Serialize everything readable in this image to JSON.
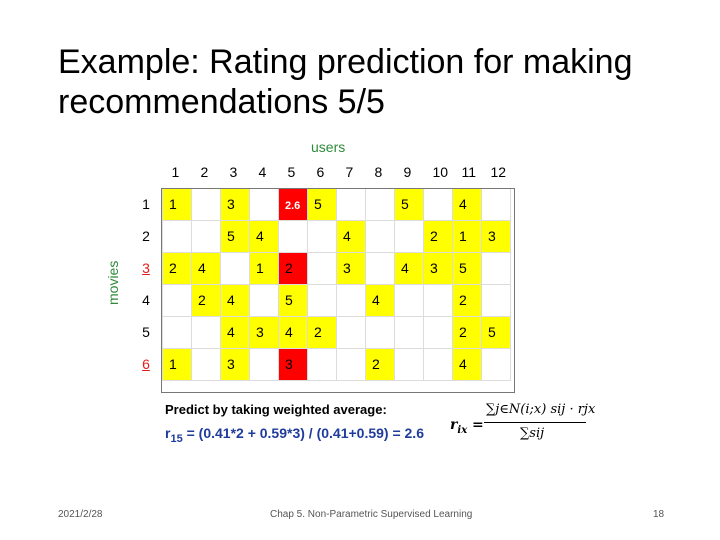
{
  "slide": {
    "title_line1": "Example: Rating prediction for making",
    "title_line2": "recommendations 5/5"
  },
  "matrix": {
    "users_label": "users",
    "movies_label": "movies",
    "user_headers": [
      "1",
      "2",
      "3",
      "4",
      "5",
      "6",
      "7",
      "8",
      "9",
      "10",
      "11",
      "12"
    ],
    "rows": [
      {
        "label": "1",
        "label_highlight": false,
        "cells": [
          {
            "v": "1",
            "c": "y"
          },
          {
            "v": "",
            "c": "w"
          },
          {
            "v": "3",
            "c": "y"
          },
          {
            "v": "",
            "c": "w"
          },
          {
            "v": "2.6",
            "c": "r",
            "pred": true
          },
          {
            "v": "5",
            "c": "y"
          },
          {
            "v": "",
            "c": "w"
          },
          {
            "v": "",
            "c": "w"
          },
          {
            "v": "5",
            "c": "y"
          },
          {
            "v": "",
            "c": "w"
          },
          {
            "v": "4",
            "c": "y"
          },
          {
            "v": "",
            "c": "w"
          }
        ]
      },
      {
        "label": "2",
        "label_highlight": false,
        "cells": [
          {
            "v": "",
            "c": "w"
          },
          {
            "v": "",
            "c": "w"
          },
          {
            "v": "5",
            "c": "y"
          },
          {
            "v": "4",
            "c": "y"
          },
          {
            "v": "",
            "c": "w"
          },
          {
            "v": "",
            "c": "w"
          },
          {
            "v": "4",
            "c": "y"
          },
          {
            "v": "",
            "c": "w"
          },
          {
            "v": "",
            "c": "w"
          },
          {
            "v": "2",
            "c": "y"
          },
          {
            "v": "1",
            "c": "y"
          },
          {
            "v": "3",
            "c": "y"
          }
        ]
      },
      {
        "label": "3",
        "label_highlight": true,
        "cells": [
          {
            "v": "2",
            "c": "y"
          },
          {
            "v": "4",
            "c": "y"
          },
          {
            "v": "",
            "c": "w"
          },
          {
            "v": "1",
            "c": "y"
          },
          {
            "v": "2",
            "c": "r"
          },
          {
            "v": "",
            "c": "w"
          },
          {
            "v": "3",
            "c": "y"
          },
          {
            "v": "",
            "c": "w"
          },
          {
            "v": "4",
            "c": "y"
          },
          {
            "v": "3",
            "c": "y"
          },
          {
            "v": "5",
            "c": "y"
          },
          {
            "v": "",
            "c": "w"
          }
        ]
      },
      {
        "label": "4",
        "label_highlight": false,
        "cells": [
          {
            "v": "",
            "c": "w"
          },
          {
            "v": "2",
            "c": "y"
          },
          {
            "v": "4",
            "c": "y"
          },
          {
            "v": "",
            "c": "w"
          },
          {
            "v": "5",
            "c": "y"
          },
          {
            "v": "",
            "c": "w"
          },
          {
            "v": "",
            "c": "w"
          },
          {
            "v": "4",
            "c": "y"
          },
          {
            "v": "",
            "c": "w"
          },
          {
            "v": "",
            "c": "w"
          },
          {
            "v": "2",
            "c": "y"
          },
          {
            "v": "",
            "c": "w"
          }
        ]
      },
      {
        "label": "5",
        "label_highlight": false,
        "cells": [
          {
            "v": "",
            "c": "w"
          },
          {
            "v": "",
            "c": "w"
          },
          {
            "v": "4",
            "c": "y"
          },
          {
            "v": "3",
            "c": "y"
          },
          {
            "v": "4",
            "c": "y"
          },
          {
            "v": "2",
            "c": "y"
          },
          {
            "v": "",
            "c": "w"
          },
          {
            "v": "",
            "c": "w"
          },
          {
            "v": "",
            "c": "w"
          },
          {
            "v": "",
            "c": "w"
          },
          {
            "v": "2",
            "c": "y"
          },
          {
            "v": "5",
            "c": "y"
          }
        ]
      },
      {
        "label": "6",
        "label_highlight": true,
        "cells": [
          {
            "v": "1",
            "c": "y"
          },
          {
            "v": "",
            "c": "w"
          },
          {
            "v": "3",
            "c": "y"
          },
          {
            "v": "",
            "c": "w"
          },
          {
            "v": "3",
            "c": "r"
          },
          {
            "v": "",
            "c": "w"
          },
          {
            "v": "",
            "c": "w"
          },
          {
            "v": "2",
            "c": "y"
          },
          {
            "v": "",
            "c": "w"
          },
          {
            "v": "",
            "c": "w"
          },
          {
            "v": "4",
            "c": "y"
          },
          {
            "v": "",
            "c": "w"
          }
        ]
      }
    ]
  },
  "explanation": {
    "predict_text": "Predict by taking weighted average:",
    "r_label": "r",
    "r_subscript": "15",
    "r_expression": "= (0.41*2 + 0.59*3) / (0.41+0.59) = 2.6",
    "formula_lhs": "r",
    "formula_lhs_sub": "ix",
    "formula_numerator": "∑j∈N(i;x) sij · rjx",
    "formula_denominator": "∑sij"
  },
  "footer": {
    "date": "2021/2/28",
    "center": "Chap 5. Non-Parametric Supervised Learning",
    "page": "18"
  },
  "colors": {
    "rated": "#ffff00",
    "target": "#ff0000",
    "label_green": "#2e8b3a",
    "formula_blue": "#1f3c9c"
  }
}
